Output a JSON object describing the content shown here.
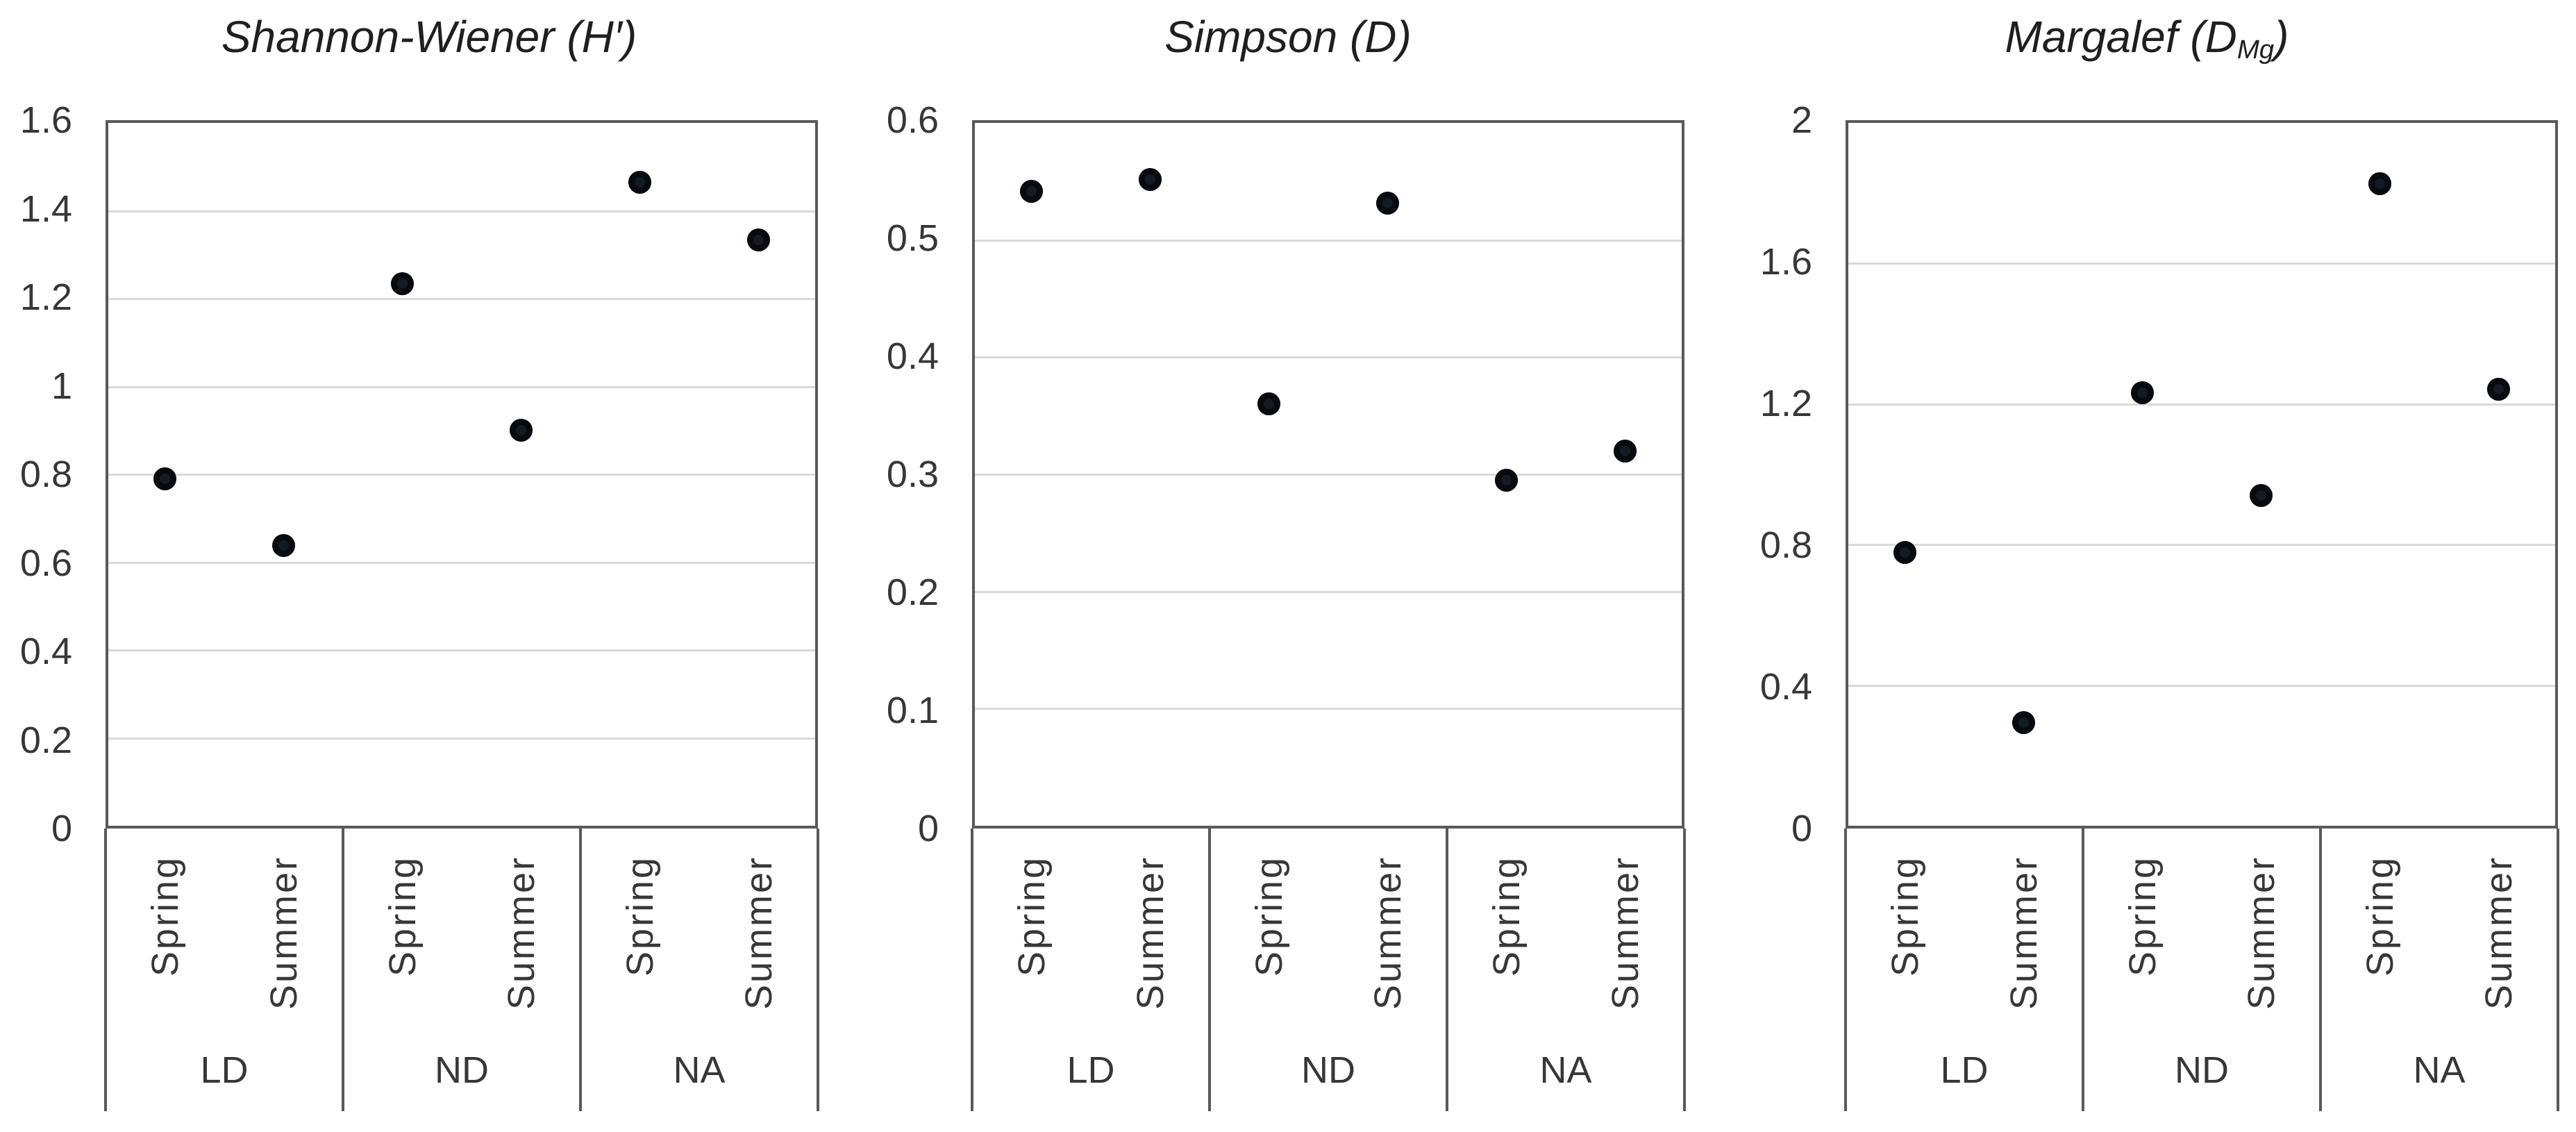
{
  "figure": {
    "background": "#ffffff",
    "x_groups": [
      "LD",
      "ND",
      "NA"
    ],
    "x_seasons": [
      "Spring",
      "Summer"
    ]
  },
  "chart_data": [
    {
      "type": "scatter",
      "title": "Shannon-Wiener (H′)",
      "title_prefix": "Shannon-Wiener (H′)",
      "title_sub": "",
      "title_suffix": "",
      "ylim": [
        0,
        1.6
      ],
      "yticks": [
        "1.6",
        "1.4",
        "1.2",
        "1",
        "0.8",
        "0.6",
        "0.4",
        "0.2",
        "0"
      ],
      "categories": [
        {
          "group": "LD",
          "season": "Spring"
        },
        {
          "group": "LD",
          "season": "Summer"
        },
        {
          "group": "ND",
          "season": "Spring"
        },
        {
          "group": "ND",
          "season": "Summer"
        },
        {
          "group": "NA",
          "season": "Spring"
        },
        {
          "group": "NA",
          "season": "Summer"
        }
      ],
      "values": [
        0.79,
        0.64,
        1.23,
        0.9,
        1.46,
        1.33
      ],
      "marker_color": "#141b22",
      "gridline_color": "#d9d9d9",
      "border_color": "#595959",
      "grid": true,
      "legend": false
    },
    {
      "type": "scatter",
      "title": "Simpson (D)",
      "title_prefix": "Simpson (D)",
      "title_sub": "",
      "title_suffix": "",
      "ylim": [
        0,
        0.6
      ],
      "yticks": [
        "0.6",
        "0.5",
        "0.4",
        "0.3",
        "0.2",
        "0.1",
        "0"
      ],
      "categories": [
        {
          "group": "LD",
          "season": "Spring"
        },
        {
          "group": "LD",
          "season": "Summer"
        },
        {
          "group": "ND",
          "season": "Spring"
        },
        {
          "group": "ND",
          "season": "Summer"
        },
        {
          "group": "NA",
          "season": "Spring"
        },
        {
          "group": "NA",
          "season": "Summer"
        }
      ],
      "values": [
        0.54,
        0.55,
        0.36,
        0.53,
        0.295,
        0.32
      ],
      "marker_color": "#141b22",
      "gridline_color": "#d9d9d9",
      "border_color": "#595959",
      "grid": true,
      "legend": false
    },
    {
      "type": "scatter",
      "title": "Margalef (DMg)",
      "title_prefix": "Margalef (D",
      "title_sub": "Mg",
      "title_suffix": ")",
      "ylim": [
        0,
        2
      ],
      "yticks": [
        "2",
        "1.6",
        "1.2",
        "0.8",
        "0.4",
        "0"
      ],
      "categories": [
        {
          "group": "LD",
          "season": "Spring"
        },
        {
          "group": "LD",
          "season": "Summer"
        },
        {
          "group": "ND",
          "season": "Spring"
        },
        {
          "group": "ND",
          "season": "Summer"
        },
        {
          "group": "NA",
          "season": "Spring"
        },
        {
          "group": "NA",
          "season": "Summer"
        }
      ],
      "values": [
        0.78,
        0.3,
        1.23,
        0.94,
        1.82,
        1.24
      ],
      "marker_color": "#141b22",
      "gridline_color": "#d9d9d9",
      "border_color": "#595959",
      "grid": true,
      "legend": false
    }
  ]
}
